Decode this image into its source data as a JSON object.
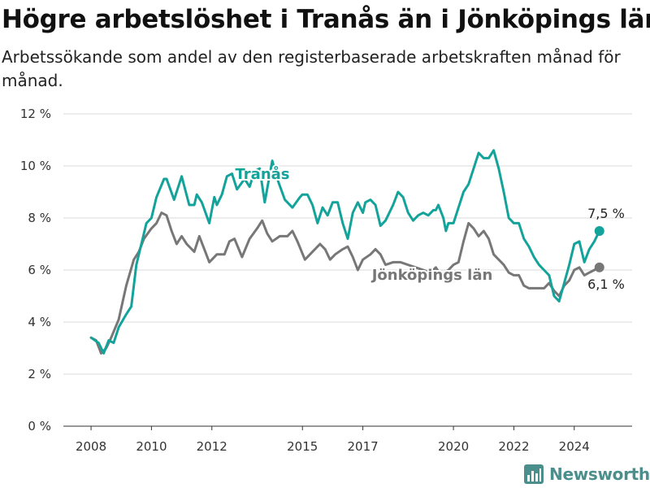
{
  "title": "Högre arbetslöshet i Tranås än i Jönköpings län",
  "subtitle": "Arbetssökande som andel av den registerbaserade arbetskraften månad för månad.",
  "brand": {
    "name": "Newsworthy",
    "color": "#4b8f8c"
  },
  "chart_data": {
    "type": "line",
    "title": "Högre arbetslöshet i Tranås än i Jönköpings län",
    "subtitle": "Arbetssökande som andel av den registerbaserade arbetskraften månad för månad.",
    "xlabel": "",
    "ylabel": "",
    "ylim": [
      0,
      12
    ],
    "xlim": [
      "2007-02",
      "2025-12"
    ],
    "y_ticks": [
      0,
      2,
      4,
      6,
      8,
      10,
      12
    ],
    "y_tick_labels": [
      "0 %",
      "2 %",
      "4 %",
      "6 %",
      "8 %",
      "10 %",
      "12 %"
    ],
    "x_ticks": [
      "2008-01",
      "2010-01",
      "2012-01",
      "2015-01",
      "2017-01",
      "2020-01",
      "2022-01",
      "2024-01"
    ],
    "x_tick_labels": [
      "2008",
      "2010",
      "2012",
      "2015",
      "2017",
      "2020",
      "2022",
      "2024"
    ],
    "grid": true,
    "series": [
      {
        "name": "Tranås",
        "color": "#14a39a",
        "end_label": "7,5 %",
        "points": [
          [
            "2008-01",
            3.4
          ],
          [
            "2008-04",
            3.2
          ],
          [
            "2008-06",
            2.8
          ],
          [
            "2008-08",
            3.3
          ],
          [
            "2008-10",
            3.2
          ],
          [
            "2008-12",
            3.8
          ],
          [
            "2009-03",
            4.3
          ],
          [
            "2009-05",
            4.6
          ],
          [
            "2009-07",
            6.2
          ],
          [
            "2009-08",
            6.6
          ],
          [
            "2009-11",
            7.8
          ],
          [
            "2010-01",
            8.0
          ],
          [
            "2010-03",
            8.8
          ],
          [
            "2010-06",
            9.5
          ],
          [
            "2010-07",
            9.5
          ],
          [
            "2010-10",
            8.7
          ],
          [
            "2011-01",
            9.6
          ],
          [
            "2011-04",
            8.5
          ],
          [
            "2011-06",
            8.5
          ],
          [
            "2011-07",
            8.9
          ],
          [
            "2011-09",
            8.6
          ],
          [
            "2011-12",
            7.8
          ],
          [
            "2012-02",
            8.8
          ],
          [
            "2012-03",
            8.5
          ],
          [
            "2012-05",
            8.9
          ],
          [
            "2012-07",
            9.6
          ],
          [
            "2012-09",
            9.7
          ],
          [
            "2012-11",
            9.1
          ],
          [
            "2013-02",
            9.5
          ],
          [
            "2013-04",
            9.2
          ],
          [
            "2013-06",
            9.8
          ],
          [
            "2013-08",
            9.9
          ],
          [
            "2013-10",
            8.6
          ],
          [
            "2014-01",
            10.2
          ],
          [
            "2014-03",
            9.5
          ],
          [
            "2014-06",
            8.7
          ],
          [
            "2014-09",
            8.4
          ],
          [
            "2014-12",
            8.8
          ],
          [
            "2015-01",
            8.9
          ],
          [
            "2015-03",
            8.9
          ],
          [
            "2015-05",
            8.5
          ],
          [
            "2015-07",
            7.8
          ],
          [
            "2015-09",
            8.4
          ],
          [
            "2015-11",
            8.1
          ],
          [
            "2016-01",
            8.6
          ],
          [
            "2016-03",
            8.6
          ],
          [
            "2016-05",
            7.8
          ],
          [
            "2016-07",
            7.2
          ],
          [
            "2016-09",
            8.2
          ],
          [
            "2016-11",
            8.6
          ],
          [
            "2017-01",
            8.2
          ],
          [
            "2017-02",
            8.6
          ],
          [
            "2017-04",
            8.7
          ],
          [
            "2017-06",
            8.5
          ],
          [
            "2017-08",
            7.7
          ],
          [
            "2017-10",
            7.9
          ],
          [
            "2018-01",
            8.5
          ],
          [
            "2018-03",
            9.0
          ],
          [
            "2018-05",
            8.8
          ],
          [
            "2018-07",
            8.2
          ],
          [
            "2018-09",
            7.9
          ],
          [
            "2018-11",
            8.1
          ],
          [
            "2019-01",
            8.2
          ],
          [
            "2019-03",
            8.1
          ],
          [
            "2019-05",
            8.3
          ],
          [
            "2019-06",
            8.3
          ],
          [
            "2019-07",
            8.5
          ],
          [
            "2019-09",
            8.0
          ],
          [
            "2019-10",
            7.5
          ],
          [
            "2019-11",
            7.8
          ],
          [
            "2020-01",
            7.8
          ],
          [
            "2020-03",
            8.4
          ],
          [
            "2020-05",
            9.0
          ],
          [
            "2020-07",
            9.3
          ],
          [
            "2020-09",
            9.9
          ],
          [
            "2020-11",
            10.5
          ],
          [
            "2021-01",
            10.3
          ],
          [
            "2021-03",
            10.3
          ],
          [
            "2021-05",
            10.6
          ],
          [
            "2021-07",
            9.9
          ],
          [
            "2021-09",
            9.0
          ],
          [
            "2021-11",
            8.0
          ],
          [
            "2022-01",
            7.8
          ],
          [
            "2022-03",
            7.8
          ],
          [
            "2022-05",
            7.2
          ],
          [
            "2022-07",
            6.9
          ],
          [
            "2022-09",
            6.5
          ],
          [
            "2022-11",
            6.2
          ],
          [
            "2023-01",
            6.0
          ],
          [
            "2023-03",
            5.8
          ],
          [
            "2023-05",
            5.0
          ],
          [
            "2023-07",
            4.8
          ],
          [
            "2023-09",
            5.5
          ],
          [
            "2023-11",
            6.2
          ],
          [
            "2024-01",
            7.0
          ],
          [
            "2024-03",
            7.1
          ],
          [
            "2024-05",
            6.3
          ],
          [
            "2024-07",
            6.8
          ],
          [
            "2024-09",
            7.1
          ],
          [
            "2024-11",
            7.5
          ]
        ]
      },
      {
        "name": "Jönköpings län",
        "color": "#777777",
        "end_label": "6,1 %",
        "points": [
          [
            "2008-01",
            3.4
          ],
          [
            "2008-03",
            3.3
          ],
          [
            "2008-05",
            2.8
          ],
          [
            "2008-07",
            3.0
          ],
          [
            "2008-09",
            3.4
          ],
          [
            "2008-12",
            4.1
          ],
          [
            "2009-03",
            5.4
          ],
          [
            "2009-06",
            6.4
          ],
          [
            "2009-08",
            6.7
          ],
          [
            "2009-10",
            7.2
          ],
          [
            "2010-01",
            7.6
          ],
          [
            "2010-03",
            7.8
          ],
          [
            "2010-05",
            8.2
          ],
          [
            "2010-07",
            8.1
          ],
          [
            "2010-09",
            7.5
          ],
          [
            "2010-11",
            7.0
          ],
          [
            "2011-01",
            7.3
          ],
          [
            "2011-03",
            7.0
          ],
          [
            "2011-06",
            6.7
          ],
          [
            "2011-08",
            7.3
          ],
          [
            "2011-10",
            6.8
          ],
          [
            "2011-12",
            6.3
          ],
          [
            "2012-03",
            6.6
          ],
          [
            "2012-06",
            6.6
          ],
          [
            "2012-08",
            7.1
          ],
          [
            "2012-10",
            7.2
          ],
          [
            "2013-01",
            6.5
          ],
          [
            "2013-04",
            7.2
          ],
          [
            "2013-07",
            7.6
          ],
          [
            "2013-09",
            7.9
          ],
          [
            "2013-11",
            7.4
          ],
          [
            "2014-01",
            7.1
          ],
          [
            "2014-04",
            7.3
          ],
          [
            "2014-07",
            7.3
          ],
          [
            "2014-09",
            7.5
          ],
          [
            "2014-11",
            7.1
          ],
          [
            "2015-02",
            6.4
          ],
          [
            "2015-05",
            6.7
          ],
          [
            "2015-08",
            7.0
          ],
          [
            "2015-10",
            6.8
          ],
          [
            "2015-12",
            6.4
          ],
          [
            "2016-02",
            6.6
          ],
          [
            "2016-05",
            6.8
          ],
          [
            "2016-07",
            6.9
          ],
          [
            "2016-09",
            6.5
          ],
          [
            "2016-11",
            6.0
          ],
          [
            "2017-01",
            6.4
          ],
          [
            "2017-04",
            6.6
          ],
          [
            "2017-06",
            6.8
          ],
          [
            "2017-08",
            6.6
          ],
          [
            "2017-10",
            6.2
          ],
          [
            "2018-01",
            6.3
          ],
          [
            "2018-04",
            6.3
          ],
          [
            "2019-04",
            5.9
          ],
          [
            "2019-06",
            6.1
          ],
          [
            "2019-08",
            5.8
          ],
          [
            "2019-11",
            6.0
          ],
          [
            "2020-01",
            6.2
          ],
          [
            "2020-03",
            6.3
          ],
          [
            "2020-05",
            7.1
          ],
          [
            "2020-07",
            7.8
          ],
          [
            "2020-09",
            7.6
          ],
          [
            "2020-11",
            7.3
          ],
          [
            "2021-01",
            7.5
          ],
          [
            "2021-03",
            7.2
          ],
          [
            "2021-05",
            6.6
          ],
          [
            "2021-07",
            6.4
          ],
          [
            "2021-09",
            6.2
          ],
          [
            "2021-11",
            5.9
          ],
          [
            "2022-01",
            5.8
          ],
          [
            "2022-03",
            5.8
          ],
          [
            "2022-05",
            5.4
          ],
          [
            "2022-07",
            5.3
          ],
          [
            "2022-09",
            5.3
          ],
          [
            "2022-11",
            5.3
          ],
          [
            "2023-01",
            5.3
          ],
          [
            "2023-03",
            5.5
          ],
          [
            "2023-05",
            5.2
          ],
          [
            "2023-07",
            5.0
          ],
          [
            "2023-09",
            5.4
          ],
          [
            "2023-11",
            5.6
          ],
          [
            "2024-01",
            6.0
          ],
          [
            "2024-03",
            6.1
          ],
          [
            "2024-05",
            5.8
          ],
          [
            "2024-07",
            5.9
          ],
          [
            "2024-09",
            6.0
          ],
          [
            "2024-11",
            6.1
          ]
        ]
      }
    ]
  }
}
